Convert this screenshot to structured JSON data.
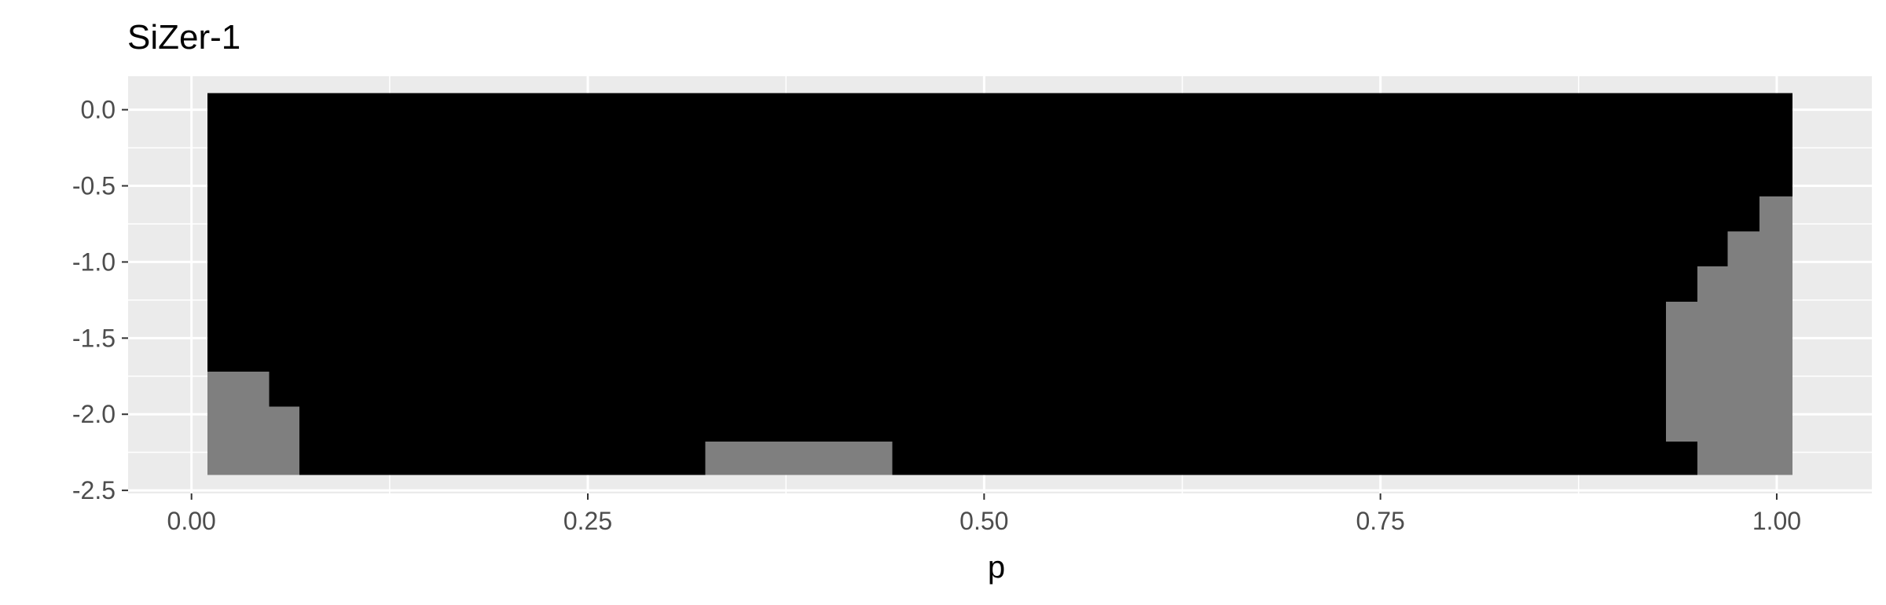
{
  "chart_data": {
    "type": "heatmap",
    "title": "SiZer-1",
    "xlabel": "p",
    "ylabel": "",
    "xlim": [
      -0.04,
      1.06
    ],
    "ylim": [
      -2.52,
      0.22
    ],
    "x_ticks": [
      0.0,
      0.25,
      0.5,
      0.75,
      1.0
    ],
    "x_tick_labels": [
      "0.00",
      "0.25",
      "0.50",
      "0.75",
      "1.00"
    ],
    "y_ticks": [
      0.0,
      -0.5,
      -1.0,
      -1.5,
      -2.0,
      -2.5
    ],
    "y_tick_labels": [
      "0.0",
      "-0.5",
      "-1.0",
      "-1.5",
      "-2.0",
      "-2.5"
    ],
    "grid": true,
    "legend": "none",
    "background_color": "#ebebeb",
    "grid_color": "#ffffff",
    "colors": {
      "dark_region": "#000000",
      "grey_region": "#7f7f7f"
    },
    "regions": [
      {
        "name": "base",
        "color": "dark_region",
        "x": [
          0.01,
          1.01
        ],
        "y": [
          -2.4,
          0.11
        ]
      },
      {
        "name": "grey-left-1",
        "color": "grey_region",
        "x": [
          0.01,
          0.049
        ],
        "y": [
          -2.4,
          -1.72
        ]
      },
      {
        "name": "grey-left-2",
        "color": "grey_region",
        "x": [
          0.049,
          0.068
        ],
        "y": [
          -2.4,
          -1.95
        ]
      },
      {
        "name": "grey-middle",
        "color": "grey_region",
        "x": [
          0.324,
          0.442
        ],
        "y": [
          -2.4,
          -2.18
        ]
      },
      {
        "name": "grey-right-1",
        "color": "grey_region",
        "x": [
          0.93,
          0.95
        ],
        "y": [
          -2.18,
          -1.26
        ]
      },
      {
        "name": "grey-right-2",
        "color": "grey_region",
        "x": [
          0.95,
          0.969
        ],
        "y": [
          -2.4,
          -1.03
        ]
      },
      {
        "name": "grey-right-3",
        "color": "grey_region",
        "x": [
          0.969,
          0.989
        ],
        "y": [
          -2.4,
          -0.8
        ]
      },
      {
        "name": "grey-right-4",
        "color": "grey_region",
        "x": [
          0.989,
          1.01
        ],
        "y": [
          -2.4,
          -0.57
        ]
      }
    ]
  }
}
